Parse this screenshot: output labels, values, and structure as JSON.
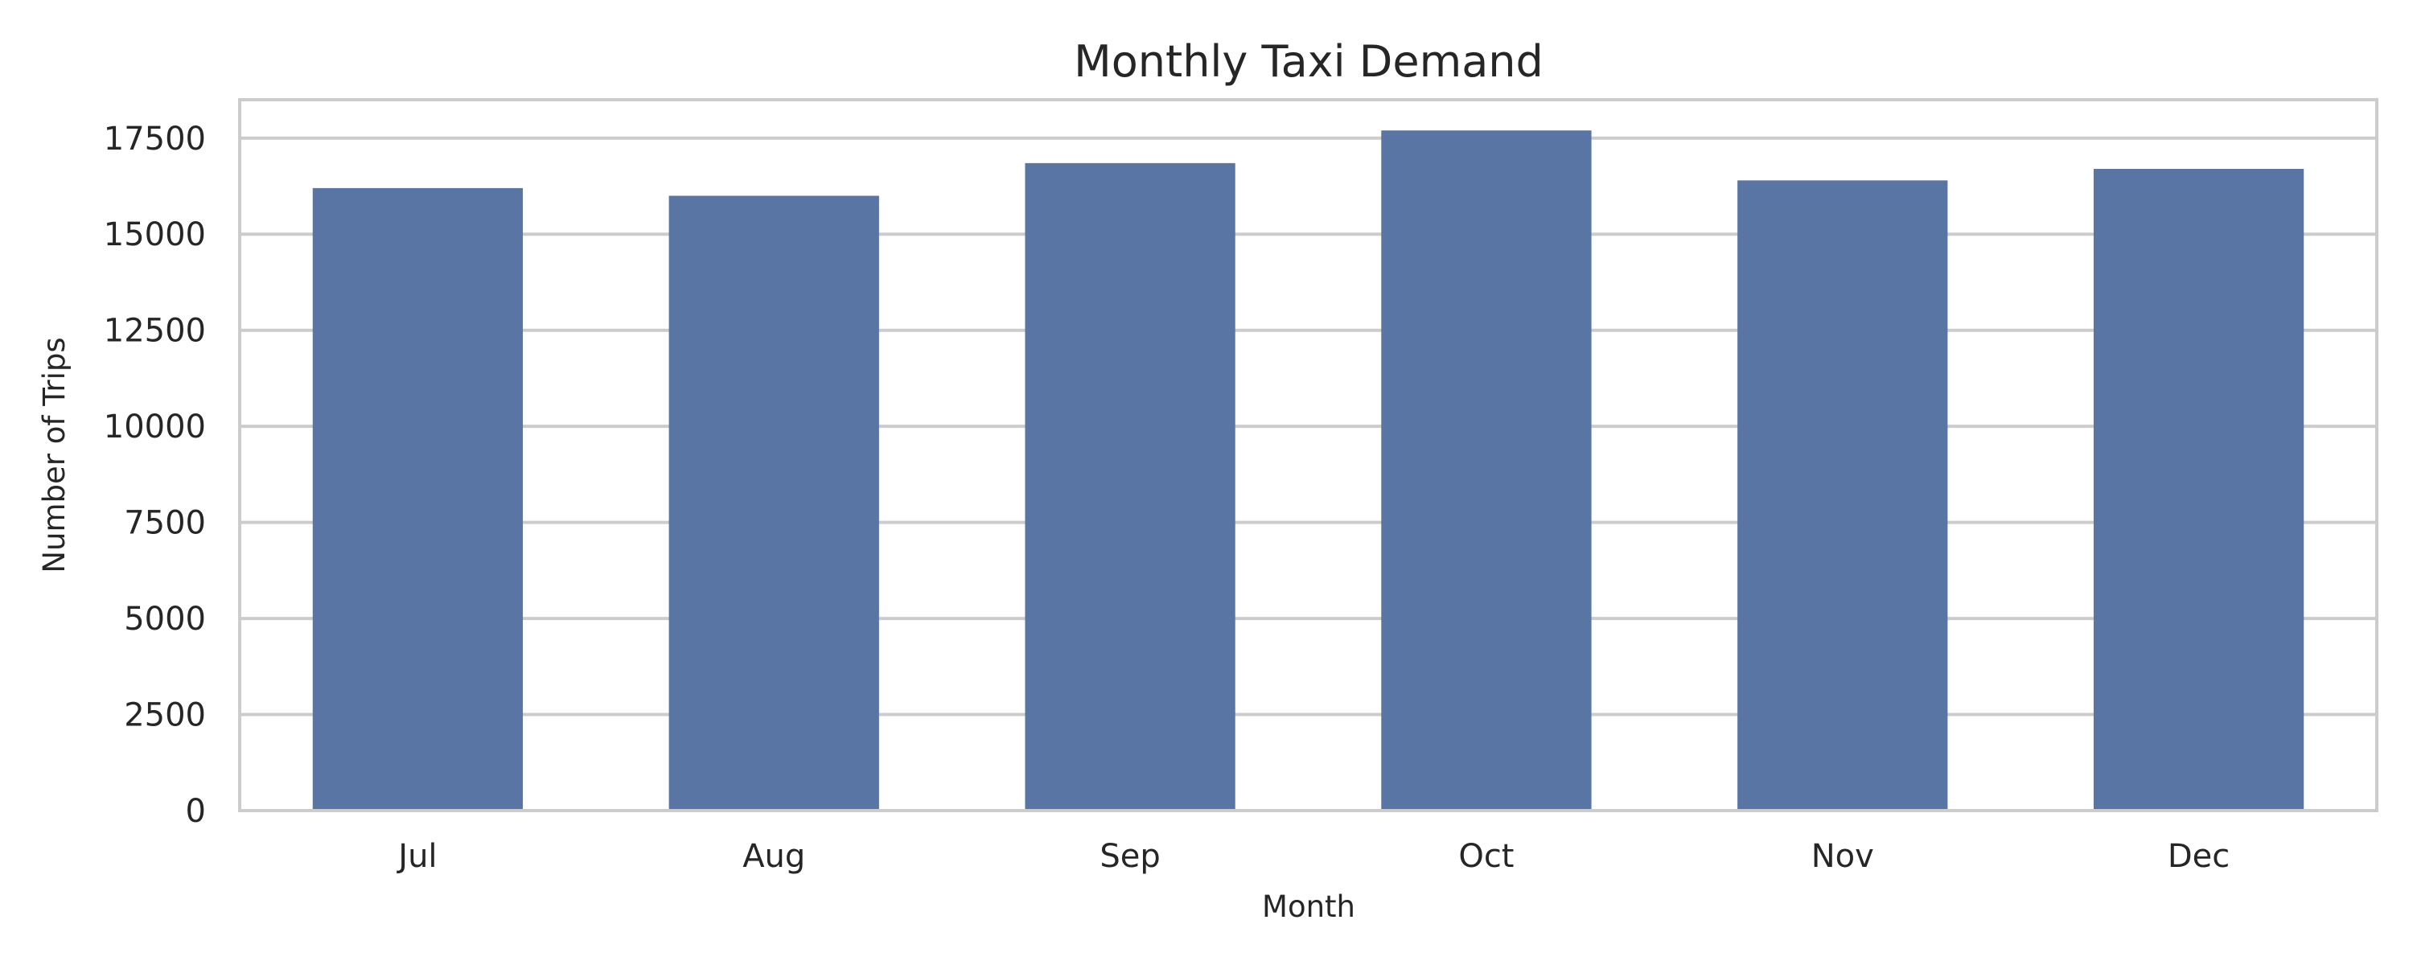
{
  "chart_data": {
    "type": "bar",
    "title": "Monthly Taxi Demand",
    "xlabel": "Month",
    "ylabel": "Number of Trips",
    "categories": [
      "Jul",
      "Aug",
      "Sep",
      "Oct",
      "Nov",
      "Dec"
    ],
    "values": [
      16200,
      16000,
      16850,
      17700,
      16400,
      16700
    ],
    "ylim": [
      0,
      18500
    ],
    "yticks": [
      0,
      2500,
      5000,
      7500,
      10000,
      12500,
      15000,
      17500
    ],
    "grid": "horizontal",
    "bar_color": "#5975a4",
    "grid_color": "#cccccc",
    "text_color": "#262626"
  }
}
